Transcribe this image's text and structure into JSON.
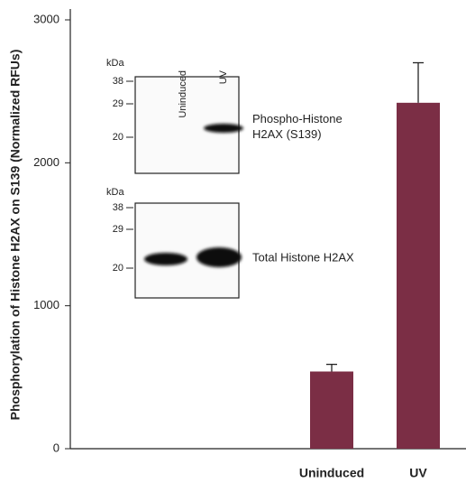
{
  "chart_data": {
    "type": "bar",
    "ylabel": "Phosphorylation of Histone H2AX on S139 (Normalized RFUs)",
    "categories": [
      "Uninduced",
      "UV"
    ],
    "values": [
      540,
      2420
    ],
    "errors": [
      50,
      280
    ],
    "color": "#7b2e45",
    "ylim": [
      0,
      3000
    ],
    "yticks": [
      0,
      1000,
      2000,
      3000
    ],
    "grid": false,
    "inset": {
      "lanes": [
        "Uninduced",
        "UV"
      ],
      "panels": [
        {
          "kda": "kDa",
          "markers": [
            38,
            29,
            20
          ],
          "label_lines": [
            "Phospho-Histone",
            "H2AX (S139)"
          ]
        },
        {
          "kda": "kDa",
          "markers": [
            38,
            29,
            20
          ],
          "label_lines": [
            "Total Histone H2AX"
          ]
        }
      ]
    }
  }
}
